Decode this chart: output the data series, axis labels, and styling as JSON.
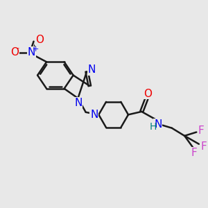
{
  "background_color": "#e8e8e8",
  "bond_color": "#1a1a1a",
  "bond_width": 1.8,
  "atom_colors": {
    "N": "#0000ee",
    "O": "#ee0000",
    "F": "#cc44cc",
    "H": "#008080",
    "C": "#1a1a1a"
  },
  "font_size": 10,
  "fig_width": 3.0,
  "fig_height": 3.0,
  "xlim": [
    0,
    10
  ],
  "ylim": [
    0,
    10
  ]
}
